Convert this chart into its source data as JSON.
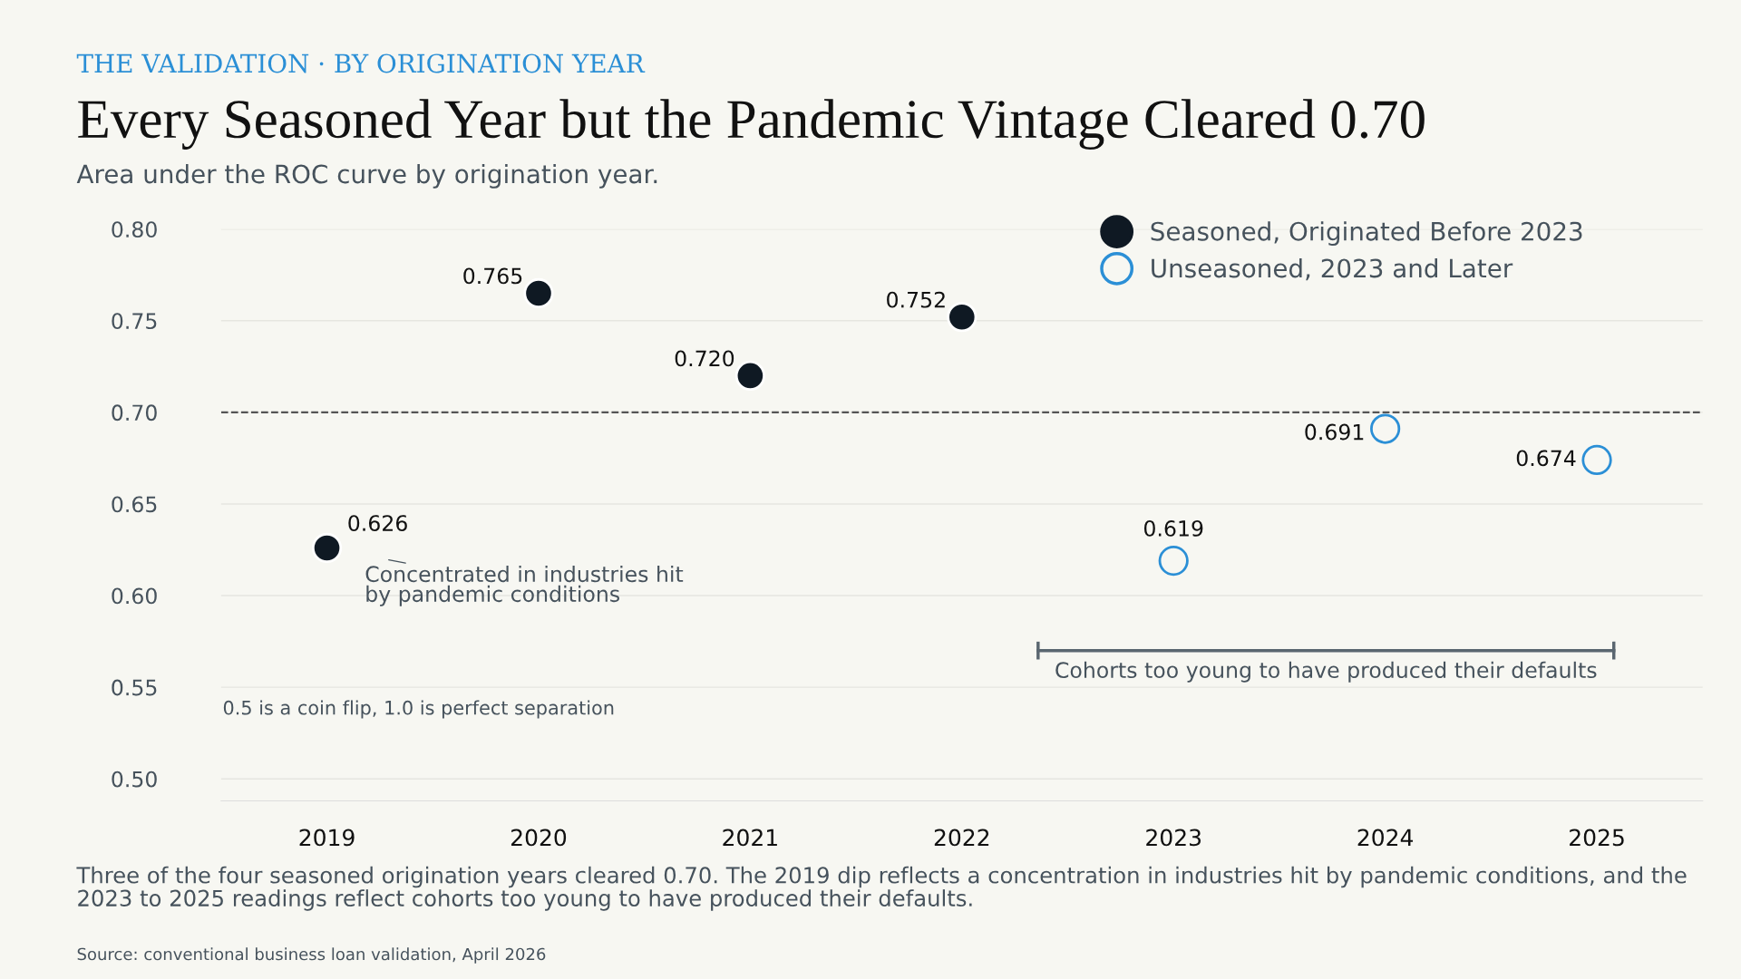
{
  "chart_data": {
    "type": "scatter",
    "title": "Every Seasoned Year but the Pandemic Vintage Cleared 0.70",
    "subtitle": "Area under the ROC curve by origination year.",
    "categories": [
      "2019",
      "2020",
      "2021",
      "2022",
      "2023",
      "2024",
      "2025"
    ],
    "series": [
      {
        "name": "Seasoned, Originated Before 2023",
        "color": "#0f1923",
        "values": [
          0.626,
          0.765,
          0.72,
          0.752,
          null,
          null,
          null
        ],
        "value_labels": [
          "0.626",
          "0.765",
          "0.720",
          "0.752",
          null,
          null,
          null
        ]
      },
      {
        "name": "Unseasoned, 2023 and Later",
        "color": "#2b8fd6",
        "values": [
          null,
          null,
          null,
          null,
          0.619,
          0.691,
          0.674
        ],
        "value_labels": [
          null,
          null,
          null,
          null,
          "0.619",
          "0.691",
          "0.674"
        ]
      }
    ],
    "ylim": [
      0.488,
      0.8
    ],
    "yticks": [
      {
        "value": 0.5,
        "label": "0.50"
      },
      {
        "value": 0.55,
        "label": "0.55"
      },
      {
        "value": 0.6,
        "label": "0.60"
      },
      {
        "value": 0.65,
        "label": "0.65"
      },
      {
        "value": 0.7,
        "label": "0.70"
      },
      {
        "value": 0.75,
        "label": "0.75"
      },
      {
        "value": 0.8,
        "label": "0.80"
      }
    ],
    "grid": "y",
    "legend": "top right",
    "marker": "circle",
    "ref_lines": [
      {
        "axis": "y",
        "value": 0.7,
        "label": null,
        "color": "#555555",
        "line_style": "dashed"
      }
    ],
    "annotations": [
      "THE VALIDATION · BY ORIGINATION YEAR",
      {
        "text": "Concentrated in industries hit\nby pandemic conditions",
        "x": "2019",
        "y": 0.626
      },
      "0.5 is a coin flip, 1.0 is perfect separation",
      "Cohorts too young to have produced their defaults",
      "Three of the four seasoned origination years cleared 0.70. The 2019 dip reflects a concentration in industries hit by pandemic conditions, and the 2023 to 2025 readings reflect cohorts too young to have produced their defaults.",
      "Source: conventional business loan validation, April 2026"
    ]
  }
}
